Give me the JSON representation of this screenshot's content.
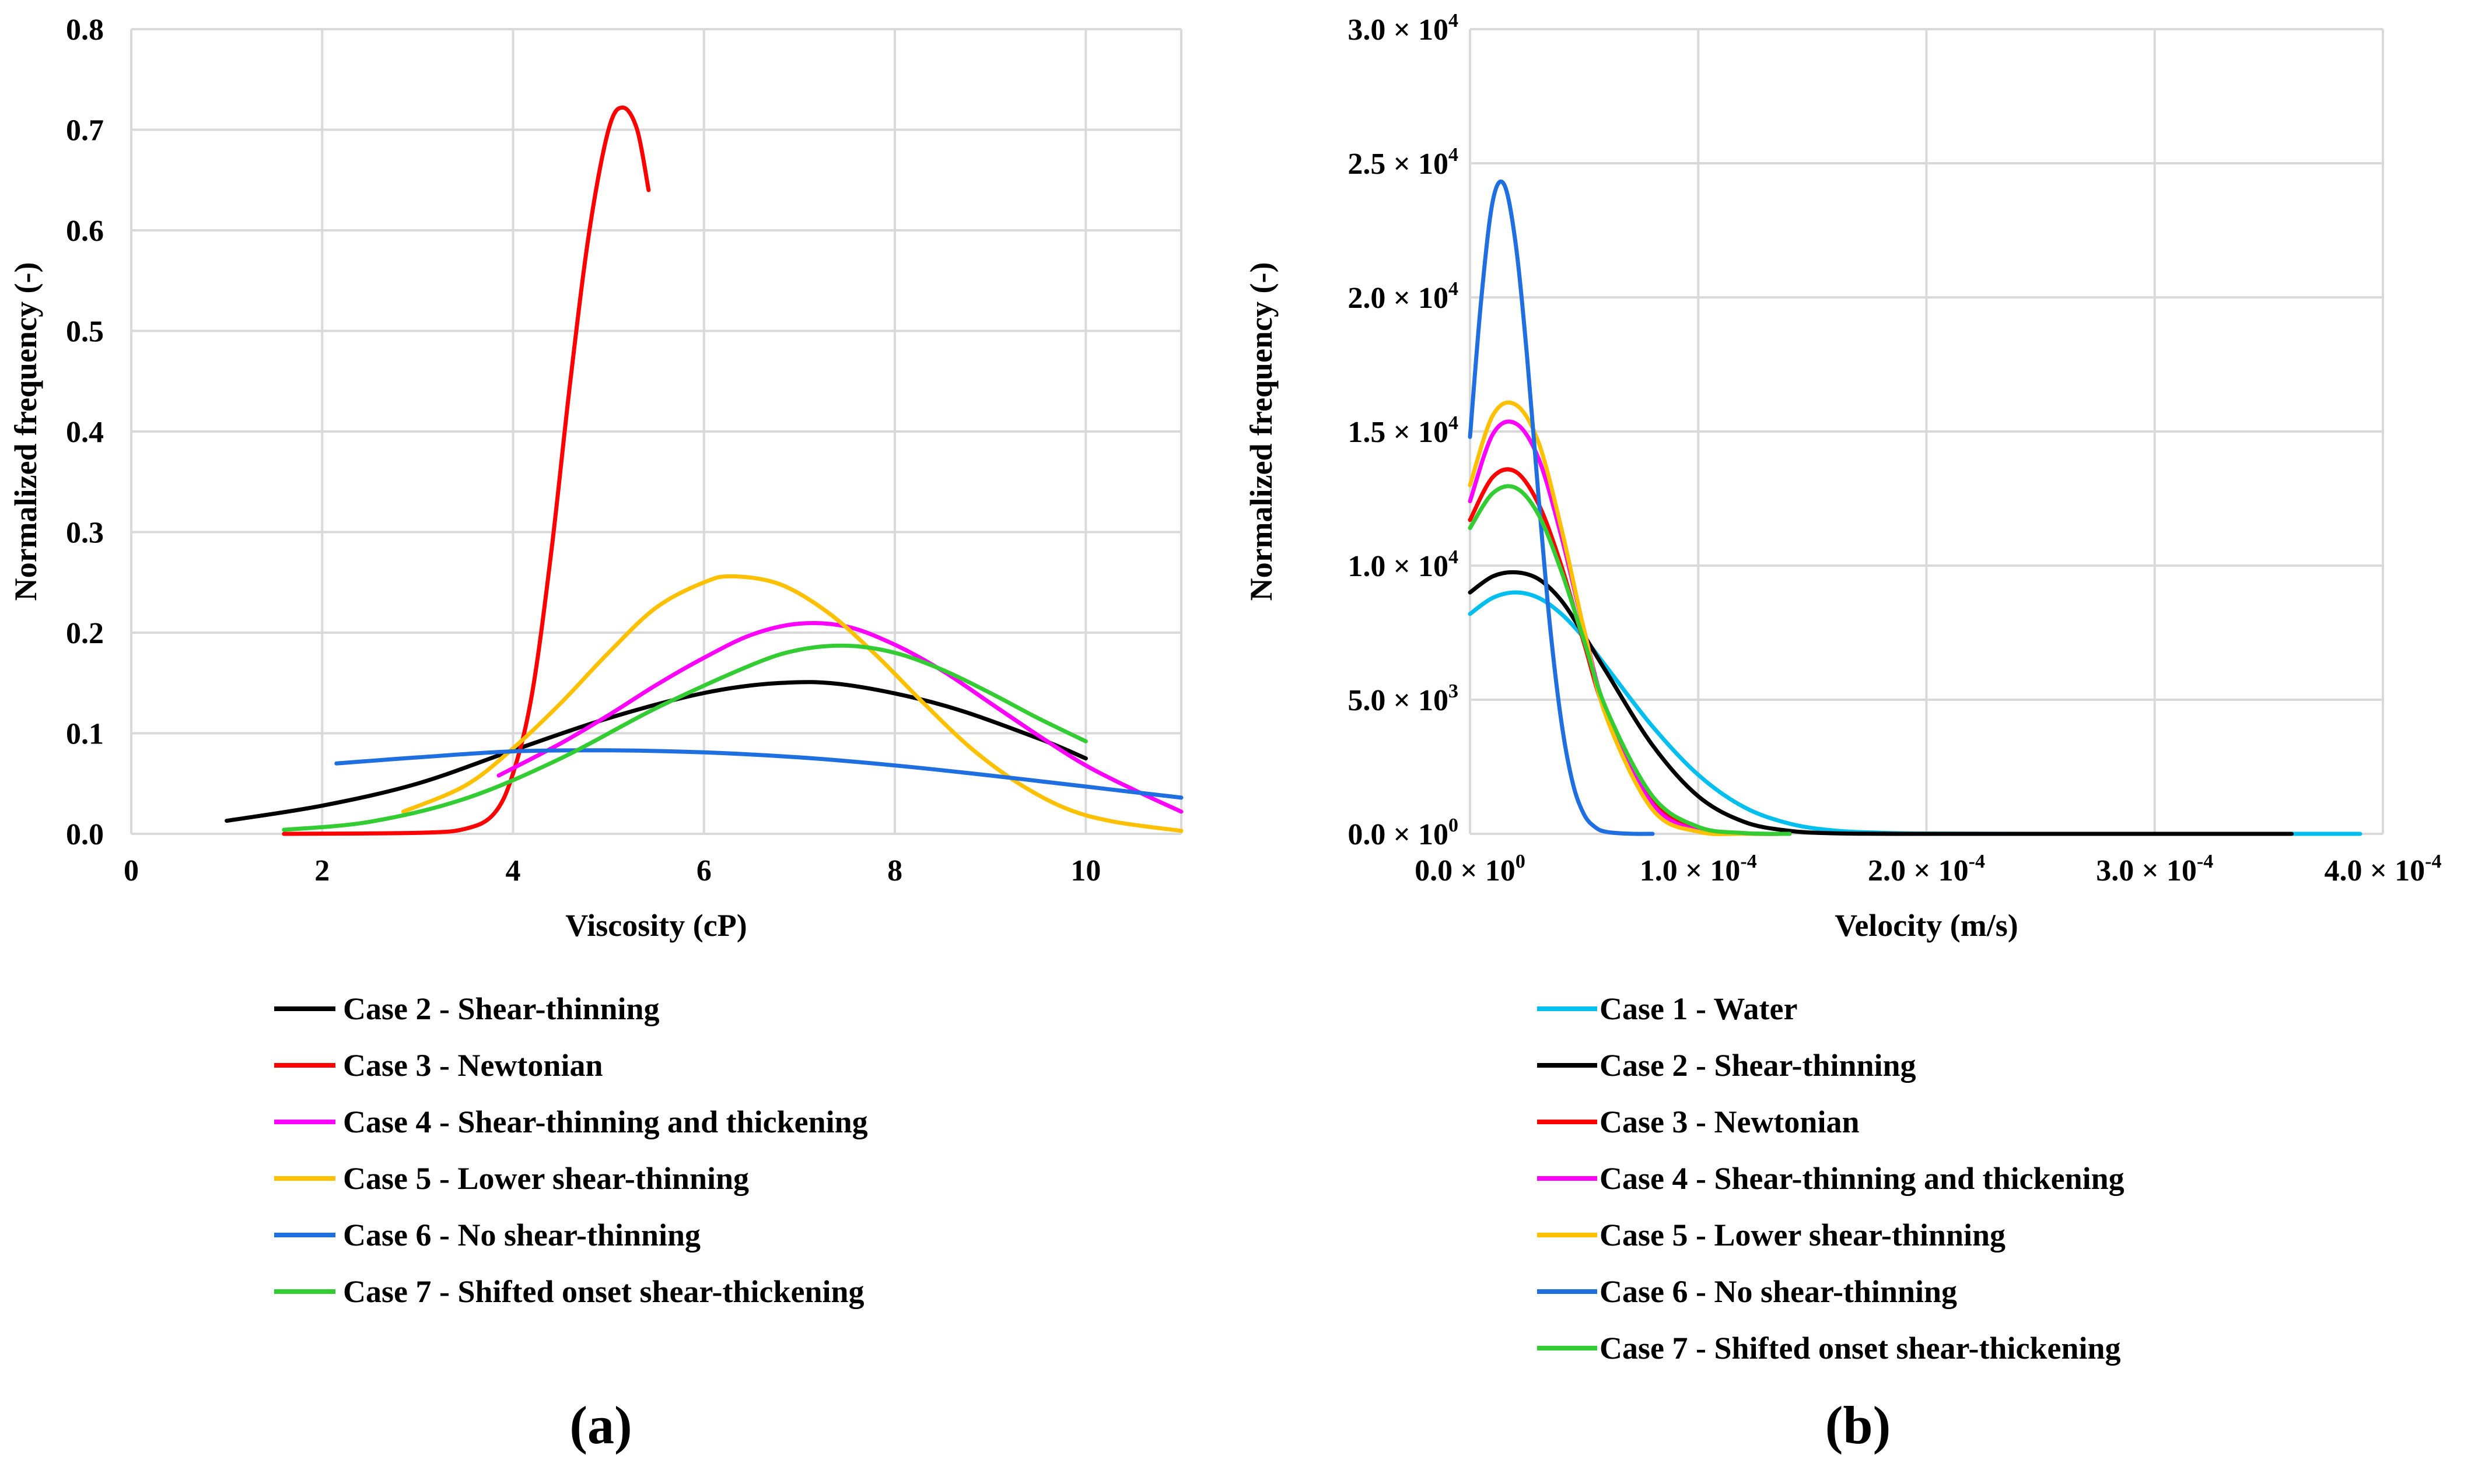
{
  "chart_data": [
    {
      "type": "line",
      "panel_label": "(a)",
      "xlabel": "Viscosity (cP)",
      "ylabel": "Normalized frequency (-)",
      "xlim": [
        0,
        11
      ],
      "ylim": [
        0,
        0.8
      ],
      "x_ticks": [
        0,
        2,
        4,
        6,
        8,
        10
      ],
      "x_tick_labels": [
        "0",
        "2",
        "4",
        "6",
        "8",
        "10"
      ],
      "y_ticks": [
        0,
        0.1,
        0.2,
        0.3,
        0.4,
        0.5,
        0.6,
        0.7,
        0.8
      ],
      "y_tick_labels": [
        "0.0",
        "0.1",
        "0.2",
        "0.3",
        "0.4",
        "0.5",
        "0.6",
        "0.7",
        "0.8"
      ],
      "grid": true,
      "legend_position": "below",
      "series": [
        {
          "name": "Case 2 - Shear-thinning",
          "color": "#000000",
          "x": [
            1.0,
            2.0,
            3.0,
            4.0,
            5.0,
            6.0,
            6.8,
            7.5,
            8.5,
            9.5,
            10.0
          ],
          "y": [
            0.013,
            0.028,
            0.05,
            0.083,
            0.115,
            0.14,
            0.15,
            0.148,
            0.128,
            0.095,
            0.075
          ]
        },
        {
          "name": "Case 3 - Newtonian",
          "color": "#ff0000",
          "x": [
            1.6,
            3.0,
            3.5,
            3.8,
            4.0,
            4.2,
            4.4,
            4.6,
            4.8,
            5.0,
            5.15,
            5.3,
            5.42
          ],
          "y": [
            0.0,
            0.001,
            0.005,
            0.02,
            0.06,
            0.14,
            0.28,
            0.45,
            0.6,
            0.7,
            0.722,
            0.7,
            0.64
          ]
        },
        {
          "name": "Case 4 - Shear-thinning and thickening",
          "color": "#ff00ff",
          "x": [
            3.85,
            4.5,
            5.0,
            5.5,
            6.0,
            6.5,
            7.0,
            7.5,
            8.0,
            8.5,
            9.0,
            9.5,
            10.0,
            10.5,
            11.0
          ],
          "y": [
            0.058,
            0.09,
            0.118,
            0.148,
            0.175,
            0.198,
            0.209,
            0.206,
            0.188,
            0.162,
            0.13,
            0.098,
            0.068,
            0.044,
            0.022
          ]
        },
        {
          "name": "Case 5 - Lower shear-thinning",
          "color": "#ffc000",
          "x": [
            2.85,
            3.5,
            4.0,
            4.5,
            5.0,
            5.5,
            6.0,
            6.3,
            6.8,
            7.3,
            7.8,
            8.3,
            8.8,
            9.3,
            9.8,
            10.3,
            11.0
          ],
          "y": [
            0.022,
            0.048,
            0.085,
            0.13,
            0.18,
            0.225,
            0.25,
            0.256,
            0.248,
            0.22,
            0.178,
            0.13,
            0.085,
            0.05,
            0.025,
            0.012,
            0.003
          ]
        },
        {
          "name": "Case 6 - No shear-thinning",
          "color": "#1f6fe0",
          "x": [
            2.15,
            3.0,
            4.0,
            5.0,
            6.0,
            7.0,
            8.0,
            9.0,
            10.0,
            11.0
          ],
          "y": [
            0.07,
            0.076,
            0.082,
            0.083,
            0.081,
            0.076,
            0.068,
            0.058,
            0.047,
            0.036
          ]
        },
        {
          "name": "Case 7 - Shifted onset shear-thickening",
          "color": "#33cc33",
          "x": [
            1.6,
            2.5,
            3.5,
            4.5,
            5.5,
            6.5,
            7.0,
            7.5,
            8.0,
            8.5,
            9.0,
            9.5,
            10.0
          ],
          "y": [
            0.004,
            0.012,
            0.035,
            0.075,
            0.125,
            0.168,
            0.183,
            0.187,
            0.18,
            0.163,
            0.14,
            0.115,
            0.092
          ]
        }
      ]
    },
    {
      "type": "line",
      "panel_label": "(b)",
      "xlabel": "Velocity (m/s)",
      "ylabel": "Normalized frequency (-)",
      "xlim": [
        0,
        0.0004
      ],
      "ylim": [
        0,
        30000
      ],
      "x_ticks": [
        0,
        0.0001,
        0.0002,
        0.0003,
        0.0004
      ],
      "x_tick_labels": [
        {
          "base": "0.0 × 10",
          "exp": "0"
        },
        {
          "base": "1.0 × 10",
          "exp": "-4"
        },
        {
          "base": "2.0 × 10",
          "exp": "-4"
        },
        {
          "base": "3.0 × 10",
          "exp": "-4"
        },
        {
          "base": "4.0 × 10",
          "exp": "-4"
        }
      ],
      "y_ticks": [
        0,
        5000,
        10000,
        15000,
        20000,
        25000,
        30000
      ],
      "y_tick_labels": [
        {
          "base": "0.0 × 10",
          "exp": "0"
        },
        {
          "base": "5.0 × 10",
          "exp": "3"
        },
        {
          "base": "1.0 × 10",
          "exp": "4"
        },
        {
          "base": "1.5 × 10",
          "exp": "4"
        },
        {
          "base": "2.0 × 10",
          "exp": "4"
        },
        {
          "base": "2.5 × 10",
          "exp": "4"
        },
        {
          "base": "3.0 × 10",
          "exp": "4"
        }
      ],
      "grid": true,
      "legend_position": "below",
      "series": [
        {
          "name": "Case 1 - Water",
          "color": "#00bfef",
          "x": [
            0.0,
            1e-05,
            2e-05,
            3e-05,
            4e-05,
            5e-05,
            6e-05,
            8e-05,
            0.0001,
            0.00012,
            0.00014,
            0.00016,
            0.00018,
            0.0002,
            0.00025,
            0.0003,
            0.00035,
            0.00039
          ],
          "y": [
            8200,
            8800,
            9000,
            8800,
            8200,
            7300,
            6200,
            4000,
            2200,
            1000,
            380,
            120,
            40,
            10,
            0,
            0,
            0,
            0
          ]
        },
        {
          "name": "Case 2 - Shear-thinning",
          "color": "#000000",
          "x": [
            0.0,
            1e-05,
            2e-05,
            3e-05,
            4e-05,
            5e-05,
            6e-05,
            8e-05,
            0.0001,
            0.00012,
            0.00014,
            0.00016,
            0.00018,
            0.0002,
            0.00026,
            0.00036
          ],
          "y": [
            9000,
            9600,
            9750,
            9500,
            8700,
            7400,
            6000,
            3300,
            1400,
            450,
            110,
            20,
            3,
            0,
            0,
            0
          ]
        },
        {
          "name": "Case 3 - Newtonian",
          "color": "#ff0000",
          "x": [
            0.0,
            1e-05,
            2e-05,
            3e-05,
            4e-05,
            5e-05,
            6e-05,
            8e-05,
            0.0001,
            0.00012,
            0.00014
          ],
          "y": [
            11700,
            13300,
            13500,
            12300,
            10000,
            7100,
            4400,
            1200,
            170,
            15,
            0
          ]
        },
        {
          "name": "Case 4 - Shear-thinning and thickening",
          "color": "#ff00ff",
          "x": [
            0.0,
            1e-05,
            2e-05,
            3e-05,
            4e-05,
            5e-05,
            6e-05,
            8e-05,
            0.0001,
            0.00012,
            0.00014
          ],
          "y": [
            12400,
            14900,
            15300,
            14000,
            11100,
            7600,
            4500,
            1100,
            120,
            8,
            0
          ]
        },
        {
          "name": "Case 5 - Lower shear-thinning",
          "color": "#ffc000",
          "x": [
            0.0,
            1e-05,
            2e-05,
            3e-05,
            4e-05,
            5e-05,
            6e-05,
            8e-05,
            0.0001,
            0.00012,
            0.00014
          ],
          "y": [
            13000,
            15600,
            16000,
            14600,
            11400,
            7600,
            4300,
            900,
            80,
            5,
            0
          ]
        },
        {
          "name": "Case 6 - No shear-thinning",
          "color": "#1f6fe0",
          "x": [
            0.0,
            5e-06,
            1e-05,
            1.5e-05,
            2e-05,
            2.5e-05,
            3e-05,
            3.5e-05,
            4e-05,
            4.5e-05,
            5e-05,
            5.5e-05,
            6e-05,
            7e-05,
            8e-05
          ],
          "y": [
            14800,
            20000,
            23600,
            24200,
            22000,
            17800,
            12600,
            7800,
            4200,
            1900,
            720,
            240,
            70,
            4,
            0
          ]
        },
        {
          "name": "Case 7 - Shifted onset shear-thickening",
          "color": "#33cc33",
          "x": [
            0.0,
            1e-05,
            2e-05,
            3e-05,
            4e-05,
            5e-05,
            6e-05,
            8e-05,
            0.0001,
            0.00012,
            0.00014
          ],
          "y": [
            11400,
            12700,
            12900,
            11900,
            9800,
            7200,
            4600,
            1400,
            260,
            30,
            0
          ]
        }
      ]
    }
  ]
}
